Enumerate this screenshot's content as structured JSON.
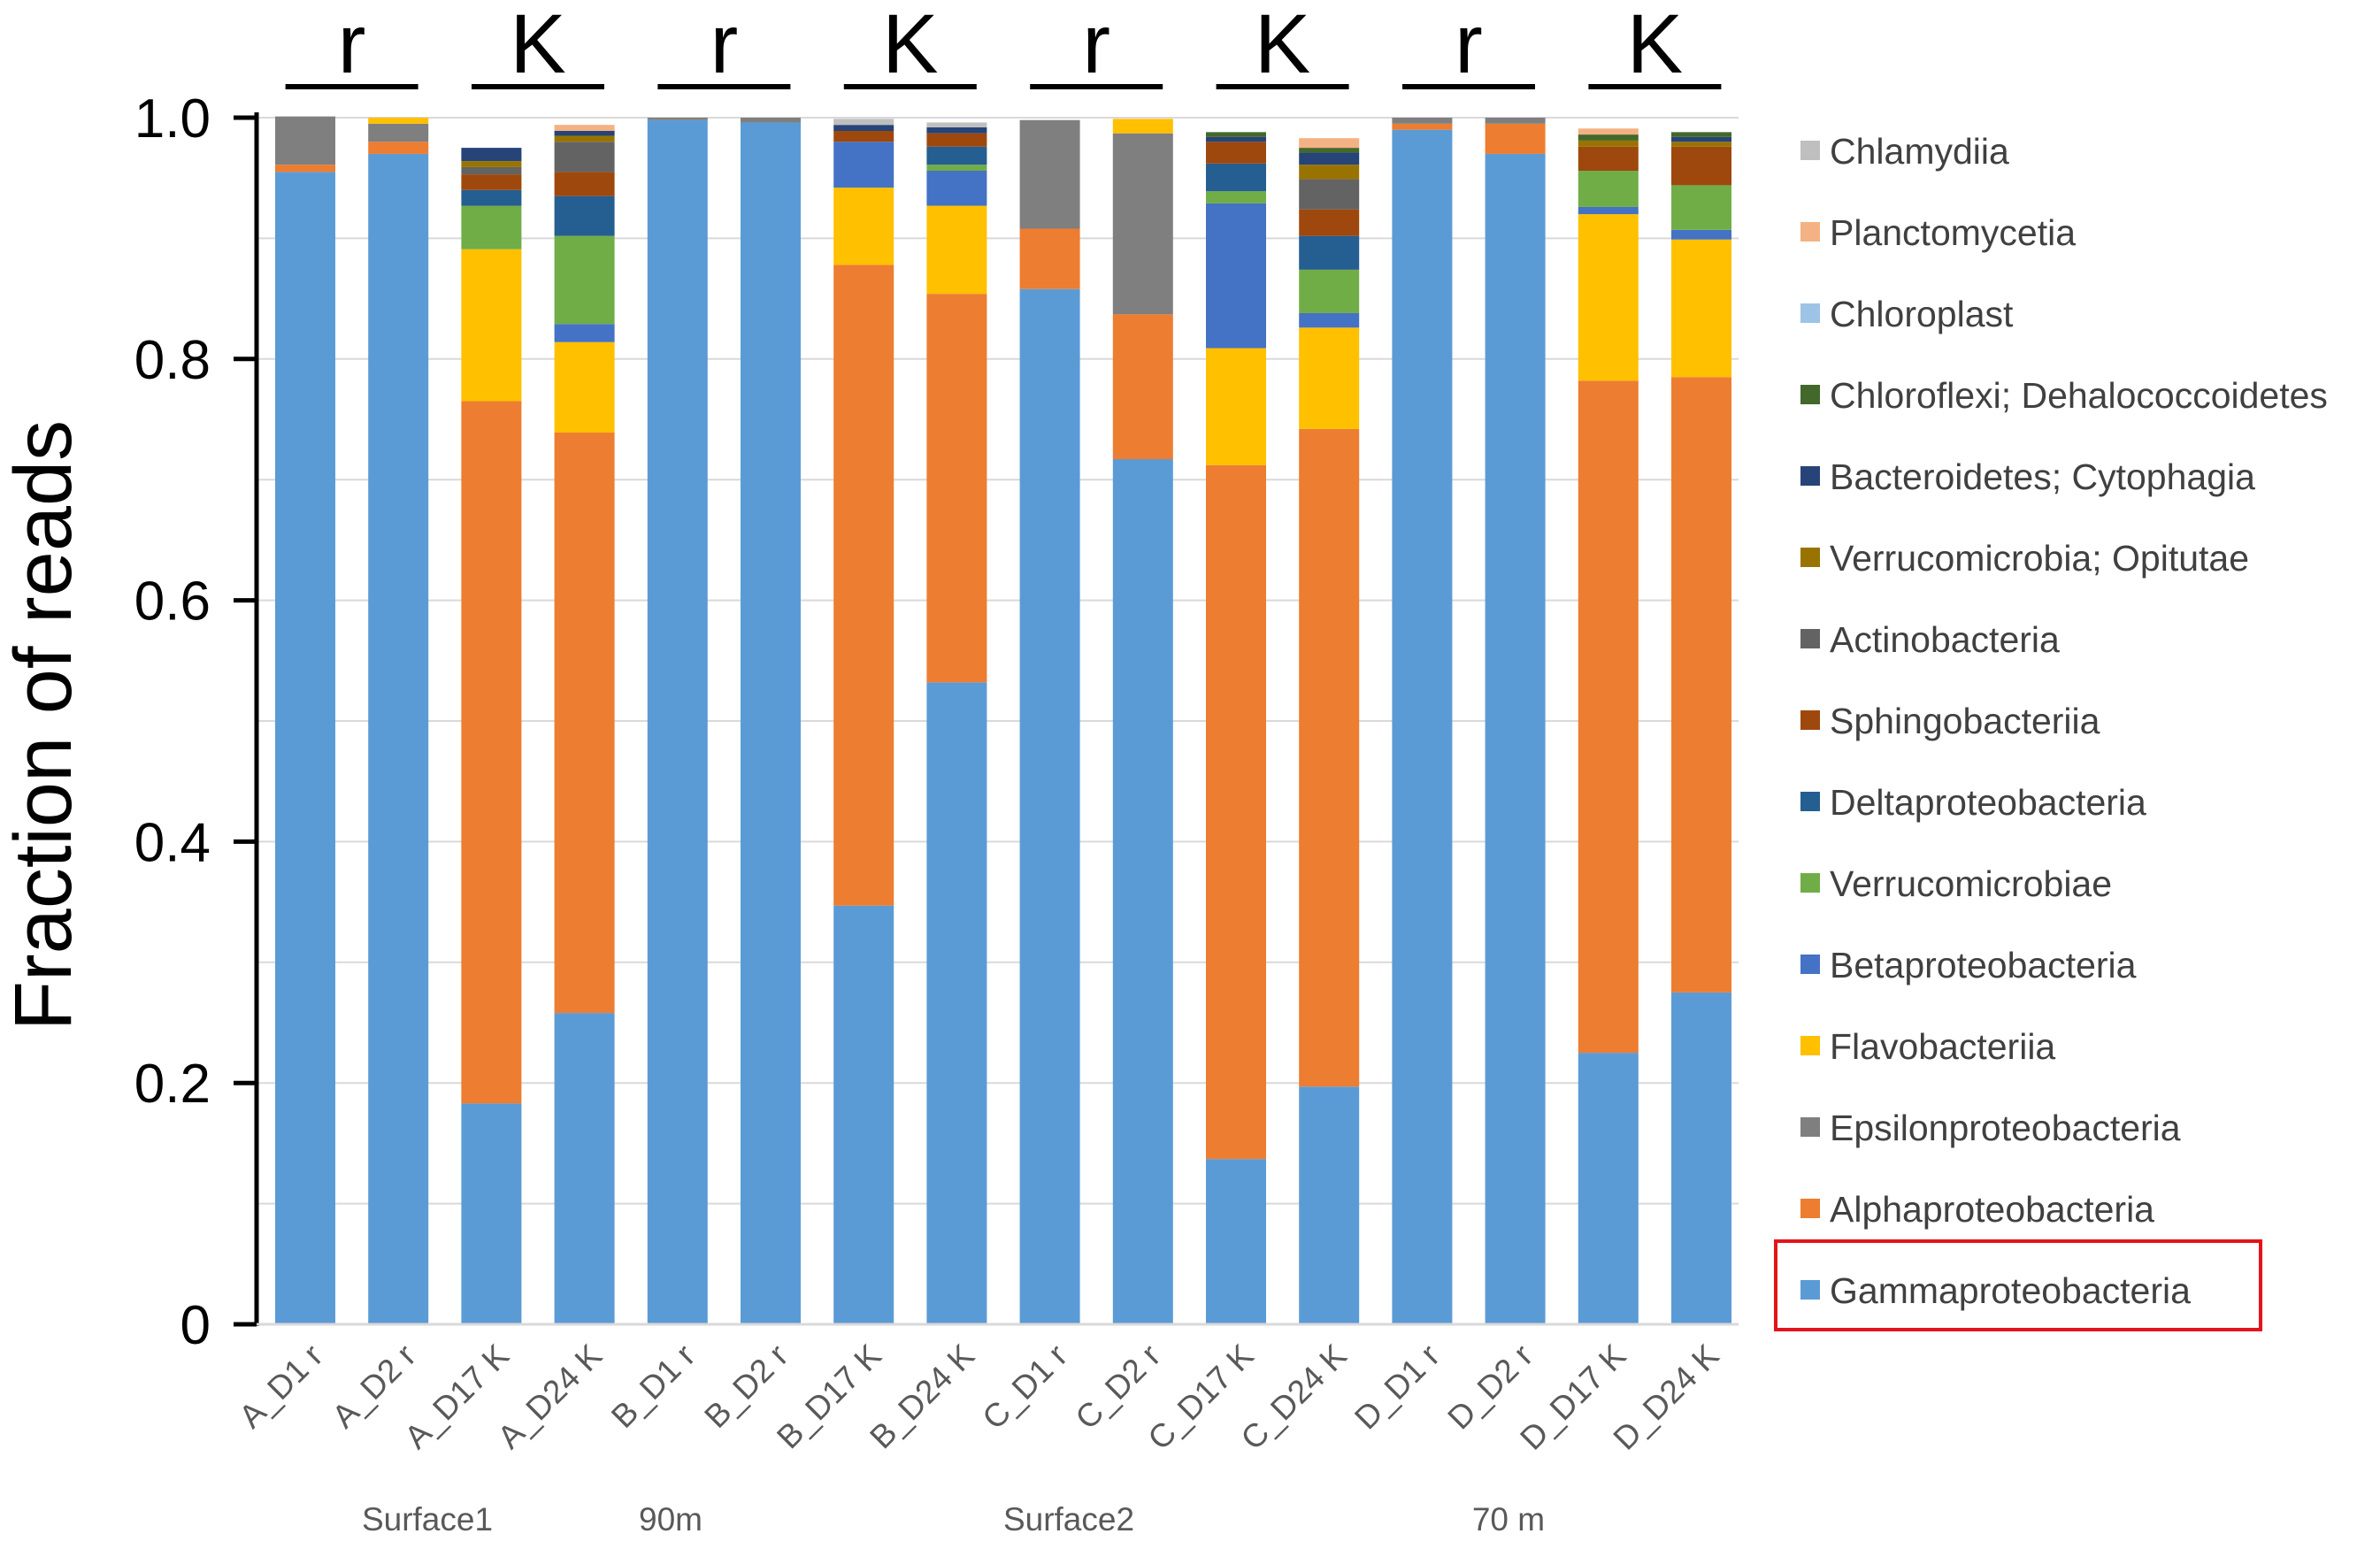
{
  "chart_data": {
    "type": "bar",
    "stacked": true,
    "title": "",
    "xlabel": "",
    "ylabel": "Fraction of reads",
    "ylim": [
      0,
      1.0
    ],
    "yticks": [
      "0",
      "0.2",
      "0.4",
      "0.6",
      "0.8",
      "1.0"
    ],
    "categories": [
      "A_D1 r",
      "A_D2 r",
      "A_D17 K",
      "A_D24 K",
      "B_D1 r",
      "B_D2 r",
      "B_D17 K",
      "B_D24 K",
      "C_D1 r",
      "C_D2 r",
      "C_D17 K",
      "C_D24 K",
      "D_D1 r",
      "D_D2 r",
      "D_D17 K",
      "D_D24 K"
    ],
    "groups": [
      "Surface1",
      "90m",
      "Surface2",
      "70 m"
    ],
    "strategy_labels": [
      "r",
      "K",
      "r",
      "K",
      "r",
      "K",
      "r",
      "K"
    ],
    "legend_highlight": "Gammaproteobacteria",
    "series": [
      {
        "name": "Gammaproteobacteria",
        "color": "#5B9BD5",
        "values": [
          0.955,
          0.97,
          0.183,
          0.258,
          0.998,
          0.996,
          0.347,
          0.532,
          0.858,
          0.717,
          0.137,
          0.197,
          0.99,
          0.97,
          0.225,
          0.275
        ]
      },
      {
        "name": "Alphaproteobacteria",
        "color": "#ED7D31",
        "values": [
          0.006,
          0.01,
          0.582,
          0.481,
          0.0,
          0.0,
          0.531,
          0.322,
          0.05,
          0.12,
          0.575,
          0.545,
          0.005,
          0.025,
          0.557,
          0.51
        ]
      },
      {
        "name": "Epsilonproteobacteria",
        "color": "#7F7F7F",
        "values": [
          0.04,
          0.015,
          0.0,
          0.0,
          0.002,
          0.004,
          0.0,
          0.0,
          0.09,
          0.15,
          0.0,
          0.0,
          0.005,
          0.005,
          0.0,
          0.0
        ]
      },
      {
        "name": "Flavobacteriia",
        "color": "#FFC000",
        "values": [
          0.0,
          0.005,
          0.126,
          0.075,
          0.0,
          0.0,
          0.064,
          0.073,
          0.0,
          0.012,
          0.097,
          0.084,
          0.0,
          0.0,
          0.138,
          0.114
        ]
      },
      {
        "name": "Betaproteobacteria",
        "color": "#4472C4",
        "values": [
          0.0,
          0.0,
          0.0,
          0.015,
          0.0,
          0.0,
          0.038,
          0.029,
          0.0,
          0.0,
          0.12,
          0.012,
          0.0,
          0.0,
          0.006,
          0.008
        ]
      },
      {
        "name": "Verrucomicrobiae",
        "color": "#70AD47",
        "values": [
          0.0,
          0.0,
          0.036,
          0.073,
          0.0,
          0.0,
          0.0,
          0.005,
          0.0,
          0.0,
          0.01,
          0.036,
          0.0,
          0.0,
          0.03,
          0.037
        ]
      },
      {
        "name": "Deltaproteobacteria",
        "color": "#255E91",
        "values": [
          0.0,
          0.0,
          0.013,
          0.033,
          0.0,
          0.0,
          0.0,
          0.015,
          0.0,
          0.0,
          0.023,
          0.028,
          0.0,
          0.0,
          0.0,
          0.0
        ]
      },
      {
        "name": "Sphingobacteriia",
        "color": "#9E480E",
        "values": [
          0.0,
          0.0,
          0.013,
          0.02,
          0.0,
          0.0,
          0.009,
          0.011,
          0.0,
          0.0,
          0.018,
          0.022,
          0.0,
          0.0,
          0.02,
          0.032
        ]
      },
      {
        "name": "Actinobacteria",
        "color": "#636363",
        "values": [
          0.0,
          0.0,
          0.006,
          0.025,
          0.0,
          0.0,
          0.0,
          0.0,
          0.0,
          0.0,
          0.0,
          0.025,
          0.0,
          0.0,
          0.0,
          0.0
        ]
      },
      {
        "name": "Verrucomicrobia; Opitutae",
        "color": "#997300",
        "values": [
          0.0,
          0.0,
          0.005,
          0.005,
          0.0,
          0.0,
          0.0,
          0.0,
          0.0,
          0.0,
          0.0,
          0.012,
          0.0,
          0.0,
          0.005,
          0.004
        ]
      },
      {
        "name": "Bacteroidetes; Cytophagia",
        "color": "#264478",
        "values": [
          0.0,
          0.0,
          0.011,
          0.004,
          0.0,
          0.0,
          0.005,
          0.005,
          0.0,
          0.0,
          0.004,
          0.01,
          0.0,
          0.0,
          0.0,
          0.004
        ]
      },
      {
        "name": "Chloroflexi; Dehalococcoidetes",
        "color": "#43682B",
        "values": [
          0.0,
          0.0,
          0.0,
          0.0,
          0.0,
          0.0,
          0.0,
          0.0,
          0.0,
          0.0,
          0.004,
          0.004,
          0.0,
          0.0,
          0.005,
          0.004
        ]
      },
      {
        "name": "Chloroplast",
        "color": "#9DC3E6",
        "values": [
          0.0,
          0.0,
          0.0,
          0.0,
          0.0,
          0.0,
          0.0,
          0.0,
          0.0,
          0.0,
          0.0,
          0.0,
          0.0,
          0.0,
          0.0,
          0.0
        ]
      },
      {
        "name": "Planctomycetia",
        "color": "#F4B183",
        "values": [
          0.0,
          0.0,
          0.0,
          0.005,
          0.0,
          0.0,
          0.0,
          0.0,
          0.0,
          0.0,
          0.0,
          0.008,
          0.0,
          0.0,
          0.005,
          0.0
        ]
      },
      {
        "name": "Chlamydiia",
        "color": "#BFBFBF",
        "values": [
          0.0,
          0.0,
          0.0,
          0.0,
          0.0,
          0.0,
          0.005,
          0.004,
          0.0,
          0.0,
          0.0,
          0.0,
          0.0,
          0.0,
          0.0,
          0.0
        ]
      }
    ]
  }
}
